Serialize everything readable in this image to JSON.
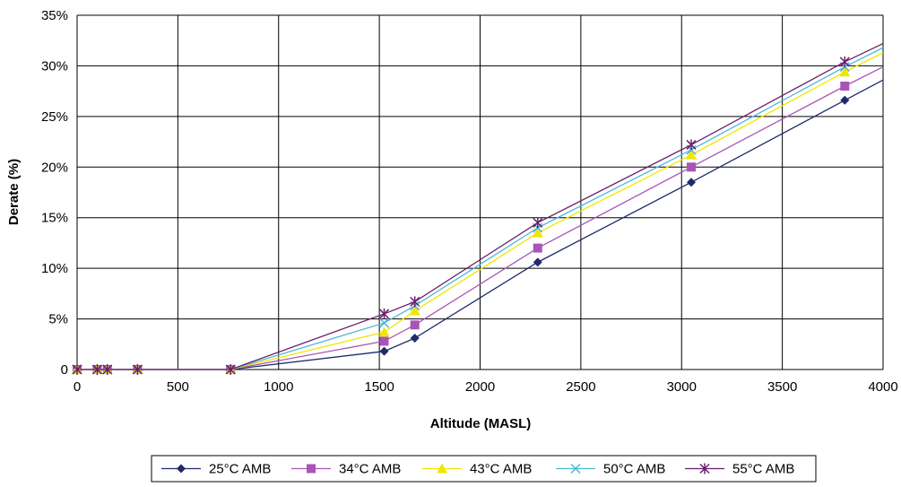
{
  "chart_data": {
    "type": "line",
    "title": "",
    "xlabel": "Altitude (MASL)",
    "ylabel": "Derate (%)",
    "xlim": [
      0,
      4000
    ],
    "ylim": [
      0,
      35
    ],
    "grid": true,
    "legend_position": "bottom",
    "x_ticks": [
      "0",
      "500",
      "1000",
      "1500",
      "2000",
      "2500",
      "3000",
      "3500",
      "4000"
    ],
    "y_ticks": [
      "0",
      "5%",
      "10%",
      "15%",
      "20%",
      "25%",
      "30%",
      "35%"
    ],
    "x_tick_values": [
      0,
      500,
      1000,
      1500,
      2000,
      2500,
      3000,
      3500,
      4000
    ],
    "y_tick_values": [
      0,
      5,
      10,
      15,
      20,
      25,
      30,
      35
    ],
    "x": [
      0,
      100,
      150,
      300,
      762,
      1524,
      1676,
      2286,
      3048,
      3810
    ],
    "series": [
      {
        "name": "25°C AMB",
        "color": "#1F2A6B",
        "marker": "diamond",
        "values": [
          0,
          0,
          0,
          0,
          0,
          1.8,
          3.1,
          10.6,
          18.5,
          26.6
        ],
        "end": [
          4000,
          28.6
        ]
      },
      {
        "name": "34°C AMB",
        "color": "#A855B8",
        "marker": "square",
        "values": [
          0,
          0,
          0,
          0,
          0,
          2.8,
          4.4,
          12.0,
          20.0,
          28.0
        ],
        "end": [
          4000,
          29.9
        ]
      },
      {
        "name": "43°C AMB",
        "color": "#F2E600",
        "marker": "triangle",
        "values": [
          0,
          0,
          0,
          0,
          0,
          3.7,
          5.8,
          13.5,
          21.2,
          29.4
        ],
        "end": [
          4000,
          31.3
        ]
      },
      {
        "name": "50°C AMB",
        "color": "#4DB8D8",
        "marker": "x",
        "values": [
          0,
          0,
          0,
          0,
          0,
          4.6,
          6.3,
          14.0,
          21.7,
          29.9
        ],
        "end": [
          4000,
          31.8
        ]
      },
      {
        "name": "55°C AMB",
        "color": "#6B1F6B",
        "marker": "star",
        "values": [
          0,
          0,
          0,
          0,
          0,
          5.5,
          6.7,
          14.5,
          22.2,
          30.4
        ],
        "end": [
          4000,
          32.2
        ]
      }
    ]
  }
}
